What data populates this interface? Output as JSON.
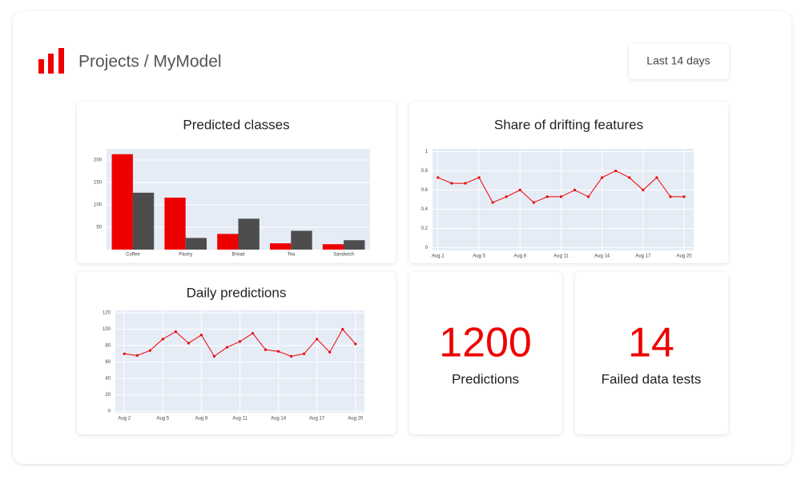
{
  "header": {
    "title": "Projects / MyModel",
    "filter": "Last 14 days"
  },
  "chart_data": [
    {
      "type": "bar",
      "title": "Predicted classes",
      "categories": [
        "Coffee",
        "Pastry",
        "Bread",
        "Tea",
        "Sandwich"
      ],
      "series": [
        {
          "color": "#ee0000",
          "values": [
            213,
            116,
            35,
            14,
            12
          ]
        },
        {
          "color": "#4d4d4d",
          "values": [
            127,
            26,
            69,
            42,
            21
          ]
        }
      ],
      "ylim": [
        0,
        225
      ],
      "yticks": [
        50,
        100,
        150,
        200
      ],
      "grid": true
    },
    {
      "type": "line",
      "title": "Share of drifting features",
      "x": [
        2,
        3,
        4,
        5,
        6,
        7,
        8,
        9,
        10,
        11,
        12,
        13,
        14,
        15,
        16,
        17,
        18,
        19,
        20
      ],
      "series": [
        {
          "color": "#ee0000",
          "values": [
            0.73,
            0.67,
            0.67,
            0.73,
            0.47,
            0.53,
            0.6,
            0.47,
            0.53,
            0.53,
            0.6,
            0.53,
            0.73,
            0.8,
            0.73,
            0.6,
            0.73,
            0.53,
            0.53
          ]
        }
      ],
      "xlim": [
        1.6,
        20.7
      ],
      "xticks": [
        {
          "value": 2,
          "label": "Aug 2"
        },
        {
          "value": 5,
          "label": "Aug 5"
        },
        {
          "value": 8,
          "label": "Aug 8"
        },
        {
          "value": 11,
          "label": "Aug 11"
        },
        {
          "value": 14,
          "label": "Aug 14"
        },
        {
          "value": 17,
          "label": "Aug 17"
        },
        {
          "value": 20,
          "label": "Aug 20"
        }
      ],
      "ylim": [
        -0.03,
        1.03
      ],
      "yticks": [
        0,
        0.2,
        0.4,
        0.6,
        0.8,
        1
      ],
      "grid": true
    },
    {
      "type": "line",
      "title": "Daily predictions",
      "x": [
        2,
        3,
        4,
        5,
        6,
        7,
        8,
        9,
        10,
        11,
        12,
        13,
        14,
        15,
        16,
        17,
        18,
        19,
        20
      ],
      "series": [
        {
          "color": "#ee0000",
          "values": [
            70,
            68,
            74,
            88,
            97,
            83,
            93,
            67,
            78,
            85,
            95,
            75,
            73,
            67,
            70,
            88,
            72,
            100,
            82
          ]
        }
      ],
      "xlim": [
        1.3,
        20.7
      ],
      "xticks": [
        {
          "value": 2,
          "label": "Aug 2"
        },
        {
          "value": 5,
          "label": "Aug 5"
        },
        {
          "value": 8,
          "label": "Aug 8"
        },
        {
          "value": 11,
          "label": "Aug 11"
        },
        {
          "value": 14,
          "label": "Aug 14"
        },
        {
          "value": 17,
          "label": "Aug 17"
        },
        {
          "value": 20,
          "label": "Aug 20"
        }
      ],
      "ylim": [
        -2,
        123
      ],
      "yticks": [
        0,
        20,
        40,
        60,
        80,
        100,
        120
      ],
      "grid": true
    }
  ],
  "kpis": [
    {
      "value": 1200,
      "label": "Predictions"
    },
    {
      "value": 14,
      "label": "Failed data tests"
    }
  ]
}
